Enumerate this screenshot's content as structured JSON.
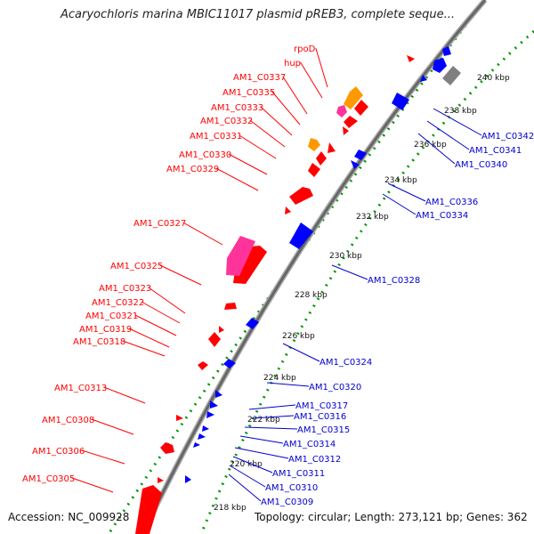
{
  "title": "Acaryochloris marina MBIC11017 plasmid pREB3, complete seque...",
  "footer": {
    "accession": "Accession: NC_009928",
    "topology": "Topology: circular; Length: 273,121 bp; Genes: 362"
  },
  "colors": {
    "forward_cds": "#ff0000",
    "reverse_cds": "#0000ff",
    "orange_feature": "#ff9900",
    "pink_feature": "#ff3399",
    "gray_feature": "#808080",
    "backbone": "#888888",
    "ticks_outer": "#009900",
    "ticks_inner": "#009900",
    "label_forward": "#ff0000",
    "label_reverse": "#0000cc"
  },
  "kbp_ticks": [
    "218 kbp",
    "220 kbp",
    "222 kbp",
    "224 kbp",
    "226 kbp",
    "228 kbp",
    "230 kbp",
    "232 kbp",
    "234 kbp",
    "236 kbp",
    "238 kbp",
    "240 kbp"
  ],
  "left_labels": [
    "rpoD",
    "hup",
    "AM1_C0337",
    "AM1_C0335",
    "AM1_C0333",
    "AM1_C0332",
    "AM1_C0331",
    "AM1_C0330",
    "AM1_C0329",
    "AM1_C0327",
    "AM1_C0325",
    "AM1_C0323",
    "AM1_C0322",
    "AM1_C0321",
    "AM1_C0319",
    "AM1_C0318",
    "AM1_C0313",
    "AM1_C0308",
    "AM1_C0306",
    "AM1_C0305"
  ],
  "right_labels": [
    "AM1_C0342",
    "AM1_C0341",
    "AM1_C0340",
    "AM1_C0336",
    "AM1_C0334",
    "AM1_C0328",
    "AM1_C0324",
    "AM1_C0320",
    "AM1_C0317",
    "AM1_C0316",
    "AM1_C0315",
    "AM1_C0314",
    "AM1_C0312",
    "AM1_C0311",
    "AM1_C0310",
    "AM1_C0309"
  ]
}
